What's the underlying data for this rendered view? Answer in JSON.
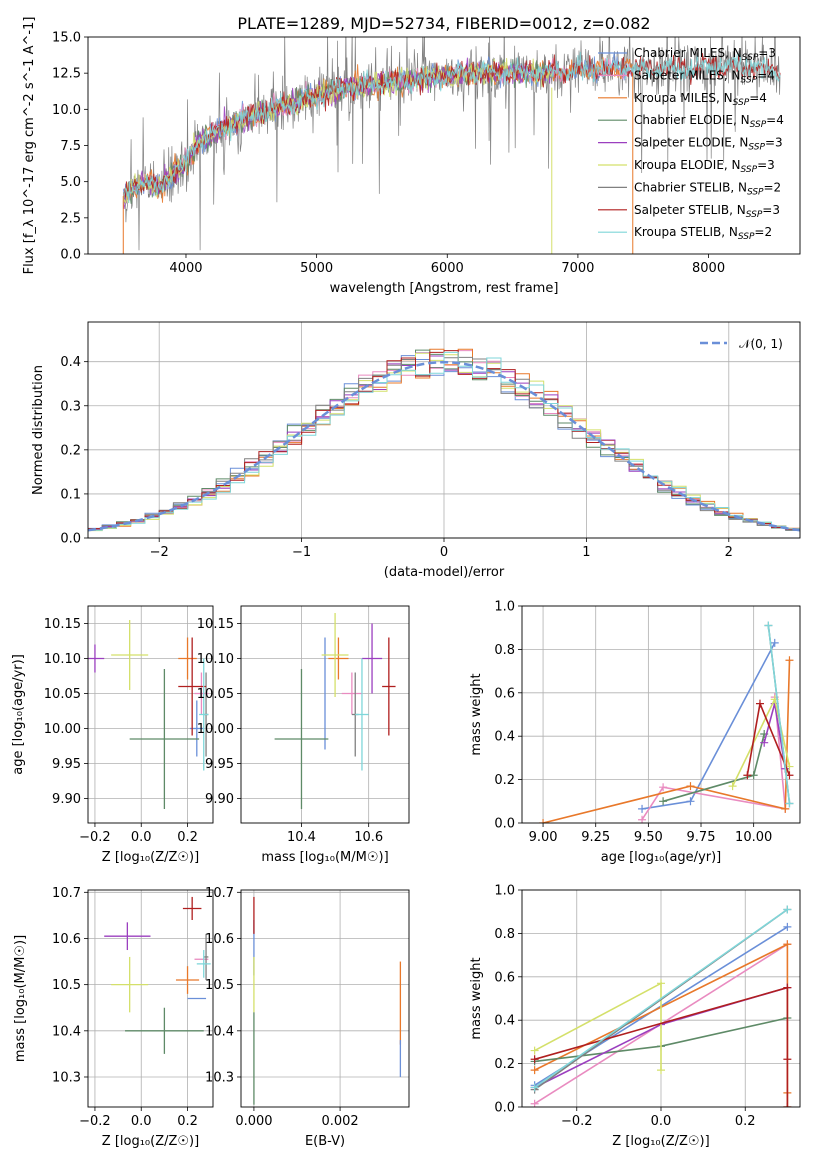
{
  "title": "PLATE=1289, MJD=52734, FIBERID=0012, z=0.082",
  "colors": {
    "Chabrier MILES": "#6a8fd8",
    "Salpeter MILES": "#e98bc0",
    "Kroupa MILES": "#e8782a",
    "Chabrier ELODIE": "#5e8a67",
    "Salpeter ELODIE": "#9b3fbf",
    "Kroupa ELODIE": "#d4e06a",
    "Chabrier STELIB": "#808080",
    "Salpeter STELIB": "#b01f1f",
    "Kroupa STELIB": "#7fd6d9"
  },
  "chart_data": [
    {
      "id": "spectrum",
      "type": "line",
      "xlabel": "wavelength [Angstrom, rest frame]",
      "ylabel": "Flux [f_λ 10^-17 erg cm^-2 s^-1 A^-1]",
      "xlim": [
        3250,
        8700
      ],
      "ylim": [
        0,
        15
      ],
      "xticks": [
        4000,
        5000,
        6000,
        7000,
        8000
      ],
      "yticks": [
        "0.0",
        "2.5",
        "5.0",
        "7.5",
        "10.0",
        "12.5",
        "15.0"
      ],
      "legend_position": "right",
      "legend": [
        {
          "label": "Chabrier MILES, N_SSP=3",
          "text": "Chabrier MILES, N",
          "sub": "SSP",
          "n": "=3"
        },
        {
          "label": "Salpeter MILES, N_SSP=4",
          "text": "Salpeter MILES, N",
          "sub": "SSP",
          "n": "=4"
        },
        {
          "label": "Kroupa MILES, N_SSP=4",
          "text": "Kroupa MILES, N",
          "sub": "SSP",
          "n": "=4"
        },
        {
          "label": "Chabrier ELODIE, N_SSP=4",
          "text": "Chabrier ELODIE, N",
          "sub": "SSP",
          "n": "=4"
        },
        {
          "label": "Salpeter ELODIE, N_SSP=3",
          "text": "Salpeter ELODIE, N",
          "sub": "SSP",
          "n": "=3"
        },
        {
          "label": "Kroupa ELODIE, N_SSP=3",
          "text": "Kroupa ELODIE, N",
          "sub": "SSP",
          "n": "=3"
        },
        {
          "label": "Chabrier STELIB, N_SSP=2",
          "text": "Chabrier STELIB, N",
          "sub": "SSP",
          "n": "=2"
        },
        {
          "label": "Salpeter STELIB, N_SSP=3",
          "text": "Salpeter STELIB, N",
          "sub": "SSP",
          "n": "=3"
        },
        {
          "label": "Kroupa STELIB, N_SSP=2",
          "text": "Kroupa STELIB, N",
          "sub": "SSP",
          "n": "=2"
        }
      ],
      "continuum": {
        "x": [
          3520,
          3600,
          3700,
          3800,
          3900,
          4000,
          4100,
          4200,
          4400,
          4600,
          4800,
          5000,
          5200,
          5500,
          5800,
          6100,
          6400,
          6700,
          7000,
          7400,
          7800,
          8200,
          8500
        ],
        "y": [
          3.9,
          4.5,
          5.0,
          4.5,
          5.6,
          6.3,
          7.8,
          8.3,
          9.2,
          9.8,
          10.4,
          11.0,
          11.4,
          11.8,
          12.1,
          12.4,
          12.6,
          12.5,
          12.7,
          12.9,
          12.8,
          13.0,
          12.7
        ]
      }
    },
    {
      "id": "residuals",
      "type": "line",
      "xlabel": "(data-model)/error",
      "ylabel": "Normed distribution",
      "xlim": [
        -2.5,
        2.5
      ],
      "ylim": [
        0,
        0.49
      ],
      "xticks": [
        "−2",
        "−1",
        "0",
        "1",
        "2"
      ],
      "yticks": [
        "0.0",
        "0.1",
        "0.2",
        "0.3",
        "0.4"
      ],
      "grid": true,
      "legend_position": "top-right",
      "legend_label": "𝒩(0, 1)",
      "reference_curve": "gaussian mean 0 sigma 1",
      "bin_width": 0.1
    },
    {
      "id": "age-vs-Z",
      "type": "scatter",
      "xlabel": "Z [log₁₀(Z/Z☉)]",
      "ylabel": "age  [log₁₀(age/yr)]",
      "xlim": [
        -0.23,
        0.31
      ],
      "ylim": [
        9.865,
        10.175
      ],
      "xticks": [
        "−0.2",
        "0.0",
        "0.2"
      ],
      "yticks": [
        "9.90",
        "9.95",
        "10.00",
        "10.05",
        "10.10",
        "10.15"
      ],
      "grid": true,
      "points": [
        {
          "model": "Chabrier MILES",
          "x": 0.24,
          "xerr": 0.03,
          "y": 10.0,
          "yerr": 0.04
        },
        {
          "model": "Salpeter MILES",
          "x": 0.26,
          "xerr": 0.03,
          "y": 10.05,
          "yerr": 0.03
        },
        {
          "model": "Kroupa MILES",
          "x": 0.2,
          "xerr": 0.04,
          "y": 10.1,
          "yerr": 0.03
        },
        {
          "model": "Chabrier ELODIE",
          "x": 0.1,
          "xerr": 0.15,
          "y": 9.985,
          "yerr": 0.1
        },
        {
          "model": "Salpeter ELODIE",
          "x": -0.2,
          "xerr": 0.04,
          "y": 10.1,
          "yerr": 0.02
        },
        {
          "model": "Kroupa ELODIE",
          "x": -0.05,
          "xerr": 0.08,
          "y": 10.105,
          "yerr": 0.05
        },
        {
          "model": "Chabrier STELIB",
          "x": 0.28,
          "xerr": 0.01,
          "y": 10.02,
          "yerr": 0.06
        },
        {
          "model": "Salpeter STELIB",
          "x": 0.22,
          "xerr": 0.06,
          "y": 10.06,
          "yerr": 0.07
        },
        {
          "model": "Kroupa STELIB",
          "x": 0.27,
          "xerr": 0.02,
          "y": 10.02,
          "yerr": 0.08
        }
      ]
    },
    {
      "id": "age-vs-mass",
      "type": "scatter",
      "xlabel": "mass [log₁₀(M/M☉)]",
      "ylabel": "",
      "xlim": [
        10.22,
        10.72
      ],
      "ylim": [
        9.865,
        10.175
      ],
      "xticks": [
        "10.4",
        "10.6"
      ],
      "yticks": [
        "9.90",
        "9.95",
        "10.00",
        "10.05",
        "10.10",
        "10.15"
      ],
      "grid": true,
      "points": [
        {
          "model": "Chabrier MILES",
          "x": 10.47,
          "xerr": 0.0,
          "y": 10.05,
          "yerr": 0.08
        },
        {
          "model": "Salpeter MILES",
          "x": 10.55,
          "xerr": 0.03,
          "y": 10.05,
          "yerr": 0.03
        },
        {
          "model": "Kroupa MILES",
          "x": 10.51,
          "xerr": 0.03,
          "y": 10.1,
          "yerr": 0.03
        },
        {
          "model": "Chabrier ELODIE",
          "x": 10.4,
          "xerr": 0.08,
          "y": 9.985,
          "yerr": 0.1
        },
        {
          "model": "Salpeter ELODIE",
          "x": 10.61,
          "xerr": 0.03,
          "y": 10.1,
          "yerr": 0.05
        },
        {
          "model": "Kroupa ELODIE",
          "x": 10.5,
          "xerr": 0.04,
          "y": 10.105,
          "yerr": 0.06
        },
        {
          "model": "Chabrier STELIB",
          "x": 10.56,
          "xerr": 0.01,
          "y": 10.02,
          "yerr": 0.06
        },
        {
          "model": "Salpeter STELIB",
          "x": 10.66,
          "xerr": 0.02,
          "y": 10.06,
          "yerr": 0.07
        },
        {
          "model": "Kroupa STELIB",
          "x": 10.58,
          "xerr": 0.02,
          "y": 10.02,
          "yerr": 0.08
        }
      ]
    },
    {
      "id": "mass-weight-vs-age",
      "type": "line",
      "xlabel": "age  [log₁₀(age/yr)]",
      "ylabel": "mass weight",
      "xlim": [
        8.9,
        10.22
      ],
      "ylim": [
        0,
        1
      ],
      "xticks": [
        "9.00",
        "9.25",
        "9.50",
        "9.75",
        "10.00"
      ],
      "yticks": [
        "0.0",
        "0.2",
        "0.4",
        "0.6",
        "0.8",
        "1.0"
      ],
      "grid": true,
      "series": [
        {
          "model": "Chabrier MILES",
          "x": [
            9.47,
            9.7,
            10.1
          ],
          "y": [
            0.065,
            0.1,
            0.83
          ]
        },
        {
          "model": "Salpeter MILES",
          "x": [
            9.47,
            9.57,
            10.15,
            10.1
          ],
          "y": [
            0.015,
            0.165,
            0.065,
            0.58
          ]
        },
        {
          "model": "Kroupa MILES",
          "x": [
            9.0,
            9.7,
            10.15,
            10.17
          ],
          "y": [
            0.0,
            0.17,
            0.065,
            0.75
          ]
        },
        {
          "model": "Chabrier ELODIE",
          "x": [
            9.57,
            10.0,
            10.05
          ],
          "y": [
            0.1,
            0.22,
            0.41
          ]
        },
        {
          "model": "Salpeter ELODIE",
          "x": [
            10.05,
            10.1,
            10.15
          ],
          "y": [
            0.37,
            0.55,
            0.25
          ]
        },
        {
          "model": "Kroupa ELODIE",
          "x": [
            9.9,
            10.1,
            10.17
          ],
          "y": [
            0.17,
            0.57,
            0.26
          ]
        },
        {
          "model": "Chabrier STELIB",
          "x": [
            10.07,
            10.17
          ],
          "y": [
            0.91,
            0.09
          ]
        },
        {
          "model": "Salpeter STELIB",
          "x": [
            9.97,
            10.03,
            10.17
          ],
          "y": [
            0.22,
            0.55,
            0.22
          ]
        },
        {
          "model": "Kroupa STELIB",
          "x": [
            10.07,
            10.17
          ],
          "y": [
            0.91,
            0.09
          ]
        }
      ]
    },
    {
      "id": "mass-vs-Z",
      "type": "scatter",
      "xlabel": "Z [log₁₀(Z/Z☉)]",
      "ylabel": "mass [log₁₀(M/M☉)]",
      "xlim": [
        -0.23,
        0.31
      ],
      "ylim": [
        10.235,
        10.705
      ],
      "xticks": [
        "−0.2",
        "0.0",
        "0.2"
      ],
      "yticks": [
        "10.3",
        "10.4",
        "10.5",
        "10.6",
        "10.7"
      ],
      "grid": true,
      "points": [
        {
          "model": "Chabrier MILES",
          "x": 0.24,
          "xerr": 0.04,
          "y": 10.47,
          "yerr": 0.0
        },
        {
          "model": "Salpeter MILES",
          "x": 0.26,
          "xerr": 0.03,
          "y": 10.555,
          "yerr": 0.0
        },
        {
          "model": "Kroupa MILES",
          "x": 0.2,
          "xerr": 0.05,
          "y": 10.51,
          "yerr": 0.03
        },
        {
          "model": "Chabrier ELODIE",
          "x": 0.1,
          "xerr": 0.17,
          "y": 10.4,
          "yerr": 0.05
        },
        {
          "model": "Salpeter ELODIE",
          "x": -0.06,
          "xerr": 0.1,
          "y": 10.605,
          "yerr": 0.03
        },
        {
          "model": "Kroupa ELODIE",
          "x": -0.05,
          "xerr": 0.08,
          "y": 10.5,
          "yerr": 0.06
        },
        {
          "model": "Chabrier STELIB",
          "x": 0.28,
          "xerr": 0.01,
          "y": 10.56,
          "yerr": 0.05
        },
        {
          "model": "Salpeter STELIB",
          "x": 0.22,
          "xerr": 0.04,
          "y": 10.665,
          "yerr": 0.025
        },
        {
          "model": "Kroupa STELIB",
          "x": 0.27,
          "xerr": 0.03,
          "y": 10.545,
          "yerr": 0.03
        }
      ]
    },
    {
      "id": "mass-vs-ebv",
      "type": "scatter",
      "xlabel": "E(B-V)",
      "ylabel": "",
      "xlim": [
        -0.0003,
        0.0036
      ],
      "ylim": [
        10.235,
        10.705
      ],
      "xticks": [
        "0.000",
        "0.002"
      ],
      "yticks": [
        "10.3",
        "10.4",
        "10.5",
        "10.6",
        "10.7"
      ],
      "grid": true,
      "points": [
        {
          "model": "Chabrier MILES",
          "x": 0.0,
          "y": 10.58,
          "yerr": 0.06
        },
        {
          "model": "Kroupa MILES",
          "x": 0.0034,
          "y": 10.46,
          "yerr": 0.09
        },
        {
          "model": "Chabrier MILES",
          "x": 0.0034,
          "y": 10.34,
          "yerr": 0.04
        },
        {
          "model": "Salpeter STELIB",
          "x": 0.0,
          "y": 10.65,
          "yerr": 0.04
        },
        {
          "model": "Kroupa ELODIE",
          "x": 0.0,
          "y": 10.5,
          "yerr": 0.06
        },
        {
          "model": "Chabrier ELODIE",
          "x": 0.0,
          "y": 10.34,
          "yerr": 0.1
        }
      ]
    },
    {
      "id": "mass-weight-vs-Z",
      "type": "line",
      "xlabel": "Z [log₁₀(Z/Z☉)]",
      "ylabel": "mass weight",
      "xlim": [
        -0.33,
        0.33
      ],
      "ylim": [
        0,
        1
      ],
      "xticks": [
        "−0.2",
        "0.0",
        "0.2"
      ],
      "yticks": [
        "0.0",
        "0.2",
        "0.4",
        "0.6",
        "0.8",
        "1.0"
      ],
      "grid": true,
      "series": [
        {
          "model": "Chabrier MILES",
          "x": [
            -0.3,
            0.3
          ],
          "y": [
            0.1,
            0.83
          ]
        },
        {
          "model": "Salpeter MILES",
          "x": [
            -0.3,
            0.3
          ],
          "y": [
            0.015,
            0.75
          ]
        },
        {
          "model": "Kroupa MILES",
          "x": [
            -0.3,
            0.3,
            0.3,
            0.3
          ],
          "y": [
            0.17,
            0.75,
            0.065,
            0.0
          ]
        },
        {
          "model": "Chabrier ELODIE",
          "x": [
            -0.3,
            0.0,
            0.3
          ],
          "y": [
            0.21,
            0.28,
            0.41
          ]
        },
        {
          "model": "Salpeter ELODIE",
          "x": [
            -0.3,
            0.0,
            0.3
          ],
          "y": [
            0.09,
            0.38,
            0.55
          ]
        },
        {
          "model": "Kroupa ELODIE",
          "x": [
            -0.3,
            0.0,
            0.0
          ],
          "y": [
            0.26,
            0.57,
            0.17
          ]
        },
        {
          "model": "Chabrier STELIB",
          "x": [
            -0.3,
            0.3
          ],
          "y": [
            0.08,
            0.91
          ]
        },
        {
          "model": "Salpeter STELIB",
          "x": [
            -0.3,
            0.3,
            0.3,
            0.3
          ],
          "y": [
            0.22,
            0.55,
            0.22,
            0.0
          ]
        },
        {
          "model": "Kroupa STELIB",
          "x": [
            -0.3,
            0.3
          ],
          "y": [
            0.09,
            0.91
          ]
        }
      ]
    }
  ]
}
